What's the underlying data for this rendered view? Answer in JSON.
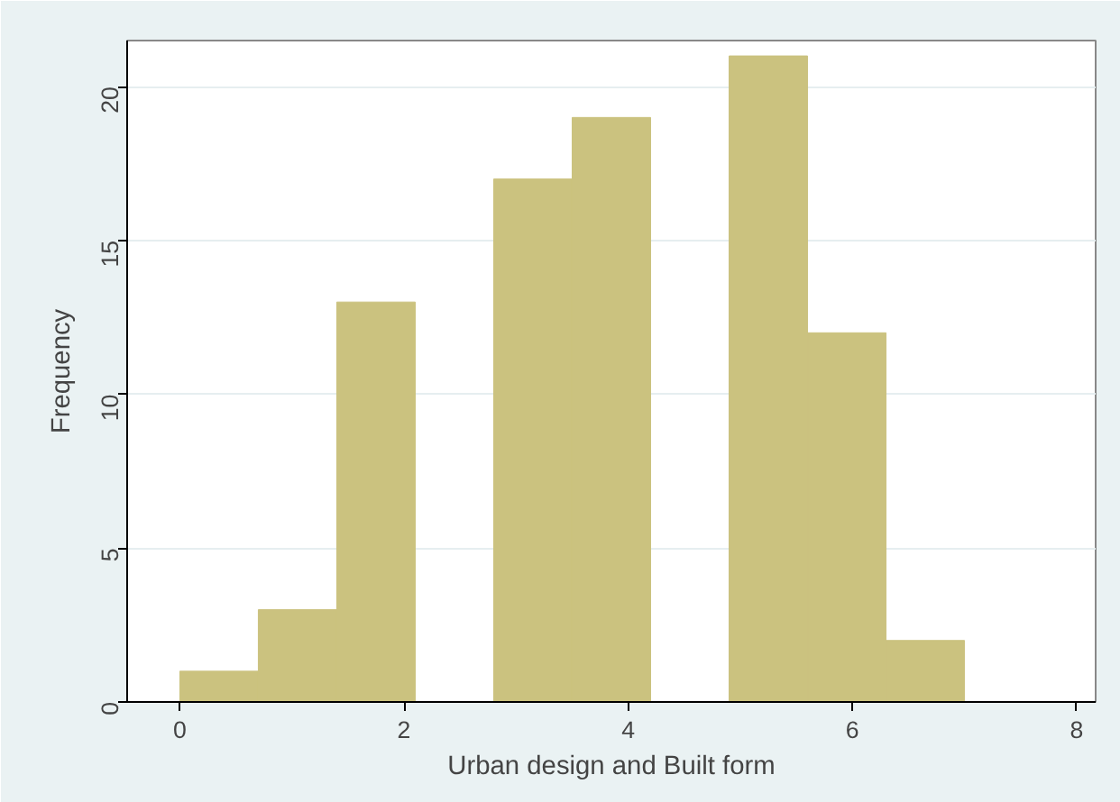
{
  "chart_data": {
    "type": "histogram",
    "xlabel": "Urban design and Built form",
    "ylabel": "Frequency",
    "bins": [
      0,
      0.7,
      1.4,
      2.1,
      2.8,
      3.5,
      4.2,
      4.9,
      5.6,
      6.3,
      7.0
    ],
    "values": [
      1,
      3,
      13,
      0,
      17,
      19,
      0,
      21,
      12,
      2
    ],
    "color": "#cbc27f",
    "xlim": [
      -0.47,
      8.17
    ],
    "ylim": [
      0,
      21.5
    ],
    "xticks": [
      0,
      2,
      4,
      6,
      8
    ],
    "yticks": [
      0,
      5,
      10,
      15,
      20
    ],
    "grid": "y"
  }
}
